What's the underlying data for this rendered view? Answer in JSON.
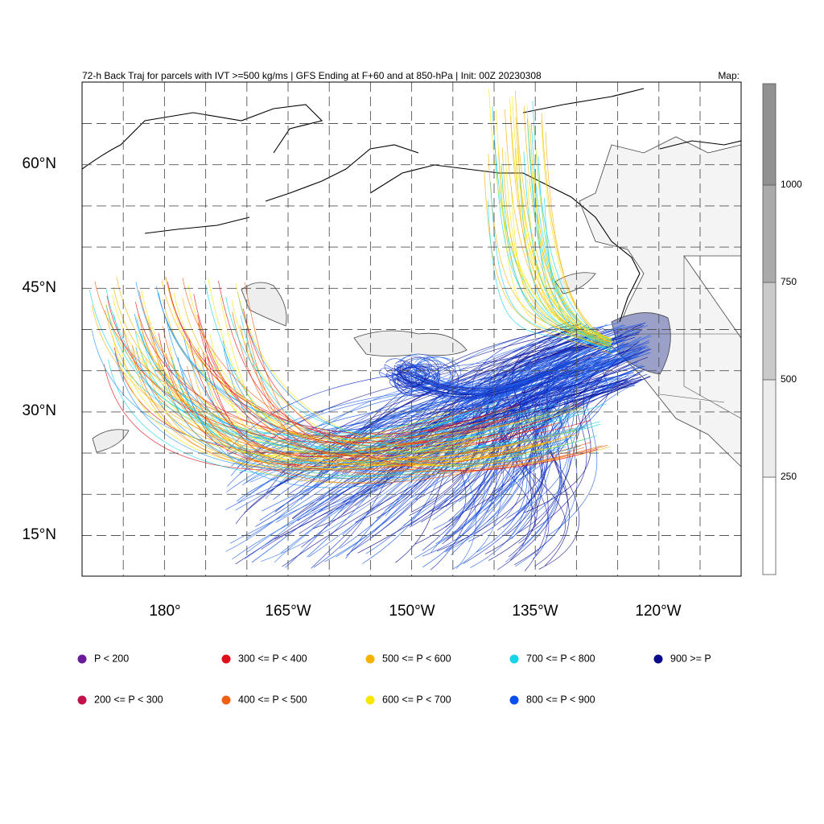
{
  "header": {
    "title": "72-h Back Traj for parcels with IVT >=500 kg/ms | GFS Ending at F+60 and at 850-hPa | Init: 00Z 20230308",
    "map_label": "Map:"
  },
  "map": {
    "lat_labels": [
      "60°N",
      "45°N",
      "30°N",
      "15°N"
    ],
    "lon_labels": [
      "180°",
      "165°W",
      "150°W",
      "135°W",
      "120°W"
    ]
  },
  "colorbar": {
    "labels": [
      1000,
      750,
      500,
      250
    ]
  },
  "legend": {
    "items": [
      {
        "label": "P < 200",
        "color": "#6a1b9a"
      },
      {
        "label": "300 <= P < 400",
        "color": "#e0101a"
      },
      {
        "label": "500 <= P < 600",
        "color": "#f5b300"
      },
      {
        "label": "700 <= P < 800",
        "color": "#14d4e8"
      },
      {
        "label": "900 >= P",
        "color": "#0a0a8c"
      },
      {
        "label": "200 <= P < 300",
        "color": "#c2104a"
      },
      {
        "label": "400 <= P < 500",
        "color": "#f06010"
      },
      {
        "label": "600 <= P < 700",
        "color": "#f8e800"
      },
      {
        "label": "800 <= P < 900",
        "color": "#0a4ef0"
      }
    ]
  }
}
